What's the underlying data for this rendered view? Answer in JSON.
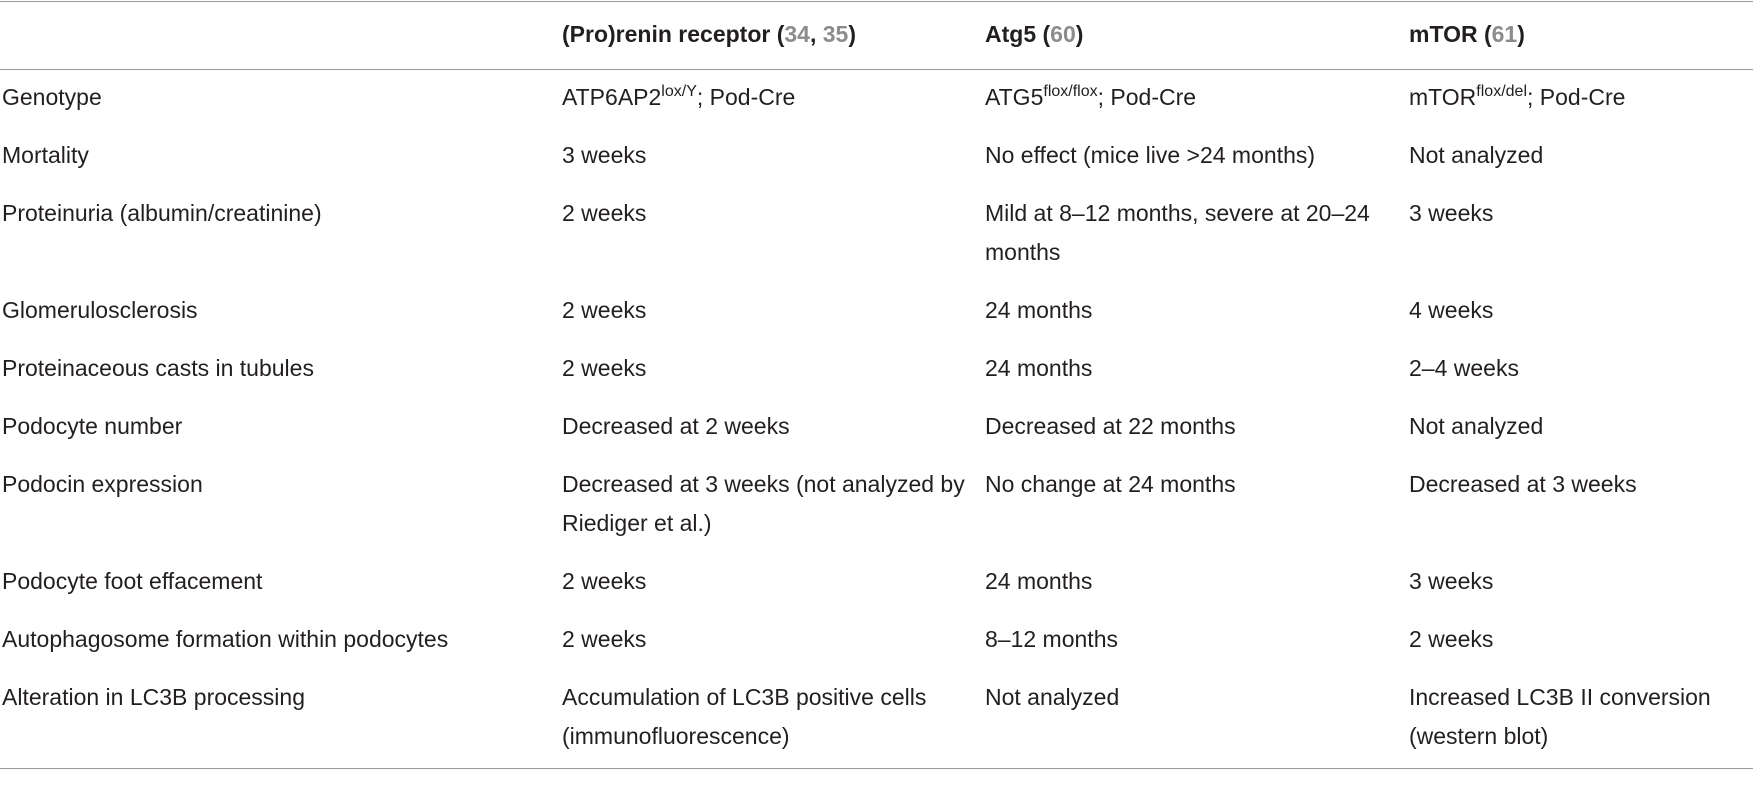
{
  "columns": {
    "h1": {
      "title": "(Pro)renin receptor (",
      "ref1": "34",
      "sep": ", ",
      "ref2": "35",
      "end": ")"
    },
    "h2": {
      "title": "Atg5 (",
      "ref1": "60",
      "end": ")"
    },
    "h3": {
      "title": "mTOR (",
      "ref1": "61",
      "end": ")"
    }
  },
  "rows": [
    {
      "label": "Genotype",
      "c1": {
        "pre": "ATP6AP2",
        "sup": "lox/Y",
        "post": "; Pod-Cre"
      },
      "c2": {
        "pre": "ATG5",
        "sup": "flox/flox",
        "post": "; Pod-Cre"
      },
      "c3": {
        "pre": "mTOR",
        "sup": "flox/del",
        "post": "; Pod-Cre"
      }
    },
    {
      "label": "Mortality",
      "c1": "3 weeks",
      "c2": "No effect (mice live >24 months)",
      "c3": "Not analyzed"
    },
    {
      "label": "Proteinuria (albumin/creatinine)",
      "c1": "2 weeks",
      "c2": "Mild at 8–12 months, severe at 20–24 months",
      "c3": "3 weeks"
    },
    {
      "label": "Glomerulosclerosis",
      "c1": "2 weeks",
      "c2": "24 months",
      "c3": "4 weeks"
    },
    {
      "label": "Proteinaceous casts in tubules",
      "c1": "2 weeks",
      "c2": "24 months",
      "c3": "2–4 weeks"
    },
    {
      "label": "Podocyte number",
      "c1": "Decreased at 2 weeks",
      "c2": "Decreased at 22 months",
      "c3": "Not analyzed"
    },
    {
      "label": "Podocin expression",
      "c1": "Decreased at 3 weeks (not analyzed by Riediger et al.)",
      "c2": "No change at 24 months",
      "c3": "Decreased at 3 weeks"
    },
    {
      "label": "Podocyte foot effacement",
      "c1": "2 weeks",
      "c2": "24 months",
      "c3": "3 weeks"
    },
    {
      "label": "Autophagosome formation within podocytes",
      "c1": "2 weeks",
      "c2": "8–12 months",
      "c3": "2 weeks"
    },
    {
      "label": "Alteration in LC3B processing",
      "c1": "Accumulation of LC3B positive cells (immunofluorescence)",
      "c2": "Not analyzed",
      "c3": "Increased LC3B II conversion (western blot)"
    }
  ]
}
